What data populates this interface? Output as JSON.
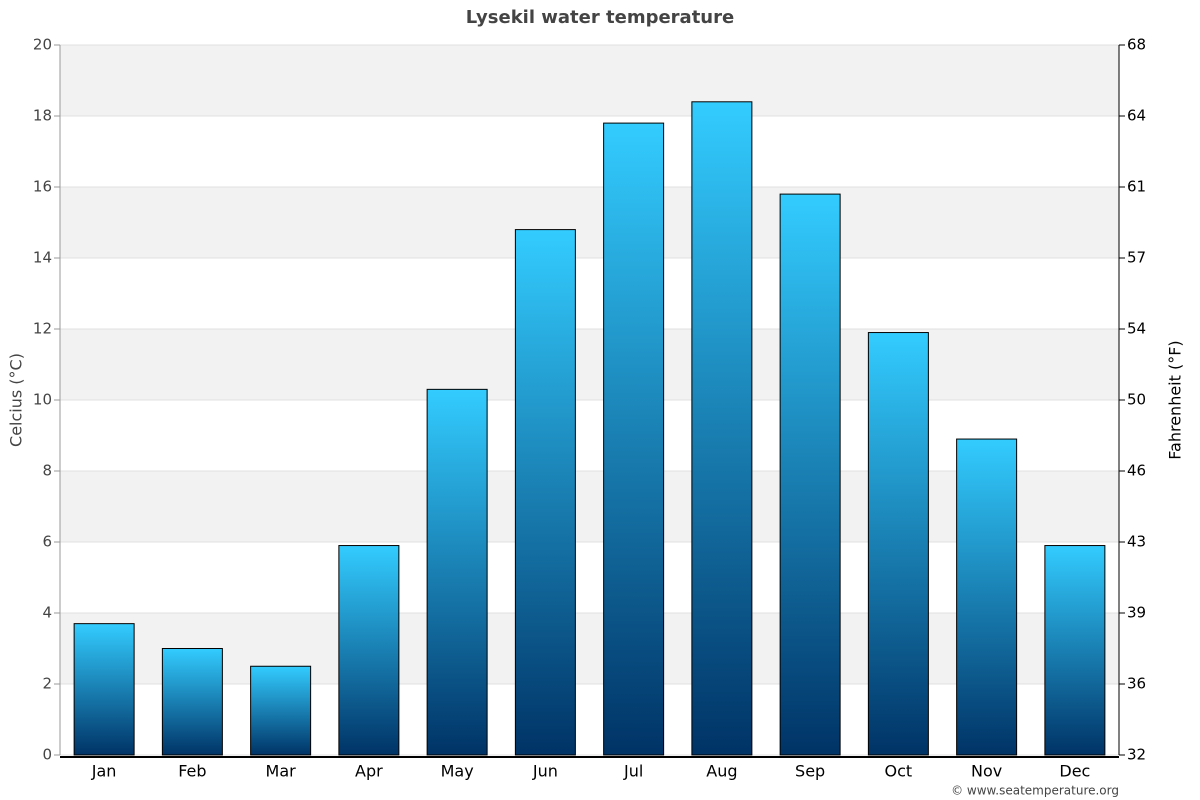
{
  "chart_data": {
    "type": "bar",
    "title": "Lysekil water temperature",
    "y_label": "Celcius (°C)",
    "y2_label": "Fahrenheit (°F)",
    "categories": [
      "Jan",
      "Feb",
      "Mar",
      "Apr",
      "May",
      "Jun",
      "Jul",
      "Aug",
      "Sep",
      "Oct",
      "Nov",
      "Dec"
    ],
    "values": [
      3.7,
      3.0,
      2.5,
      5.9,
      10.3,
      14.8,
      17.8,
      18.4,
      15.8,
      11.9,
      8.9,
      5.9
    ],
    "color_top": "#33ccff",
    "color_bottom": "#003366",
    "ylim": [
      0,
      20
    ],
    "yticks": [
      0,
      2,
      4,
      6,
      8,
      10,
      12,
      14,
      16,
      18,
      20
    ],
    "y2lim": [
      32,
      68
    ],
    "y2ticks": [
      32,
      {
        "value": 35.6,
        "label": "36"
      },
      {
        "value": 39.2,
        "label": "39"
      },
      {
        "value": 42.8,
        "label": "43"
      },
      {
        "value": 46.4,
        "label": "46"
      },
      50,
      {
        "value": 53.6,
        "label": "54"
      },
      {
        "value": 57.2,
        "label": "57"
      },
      {
        "value": 60.8,
        "label": "61"
      },
      {
        "value": 64.4,
        "label": "64"
      },
      68
    ],
    "grid": true,
    "credit": "© www.seatemperature.org"
  }
}
